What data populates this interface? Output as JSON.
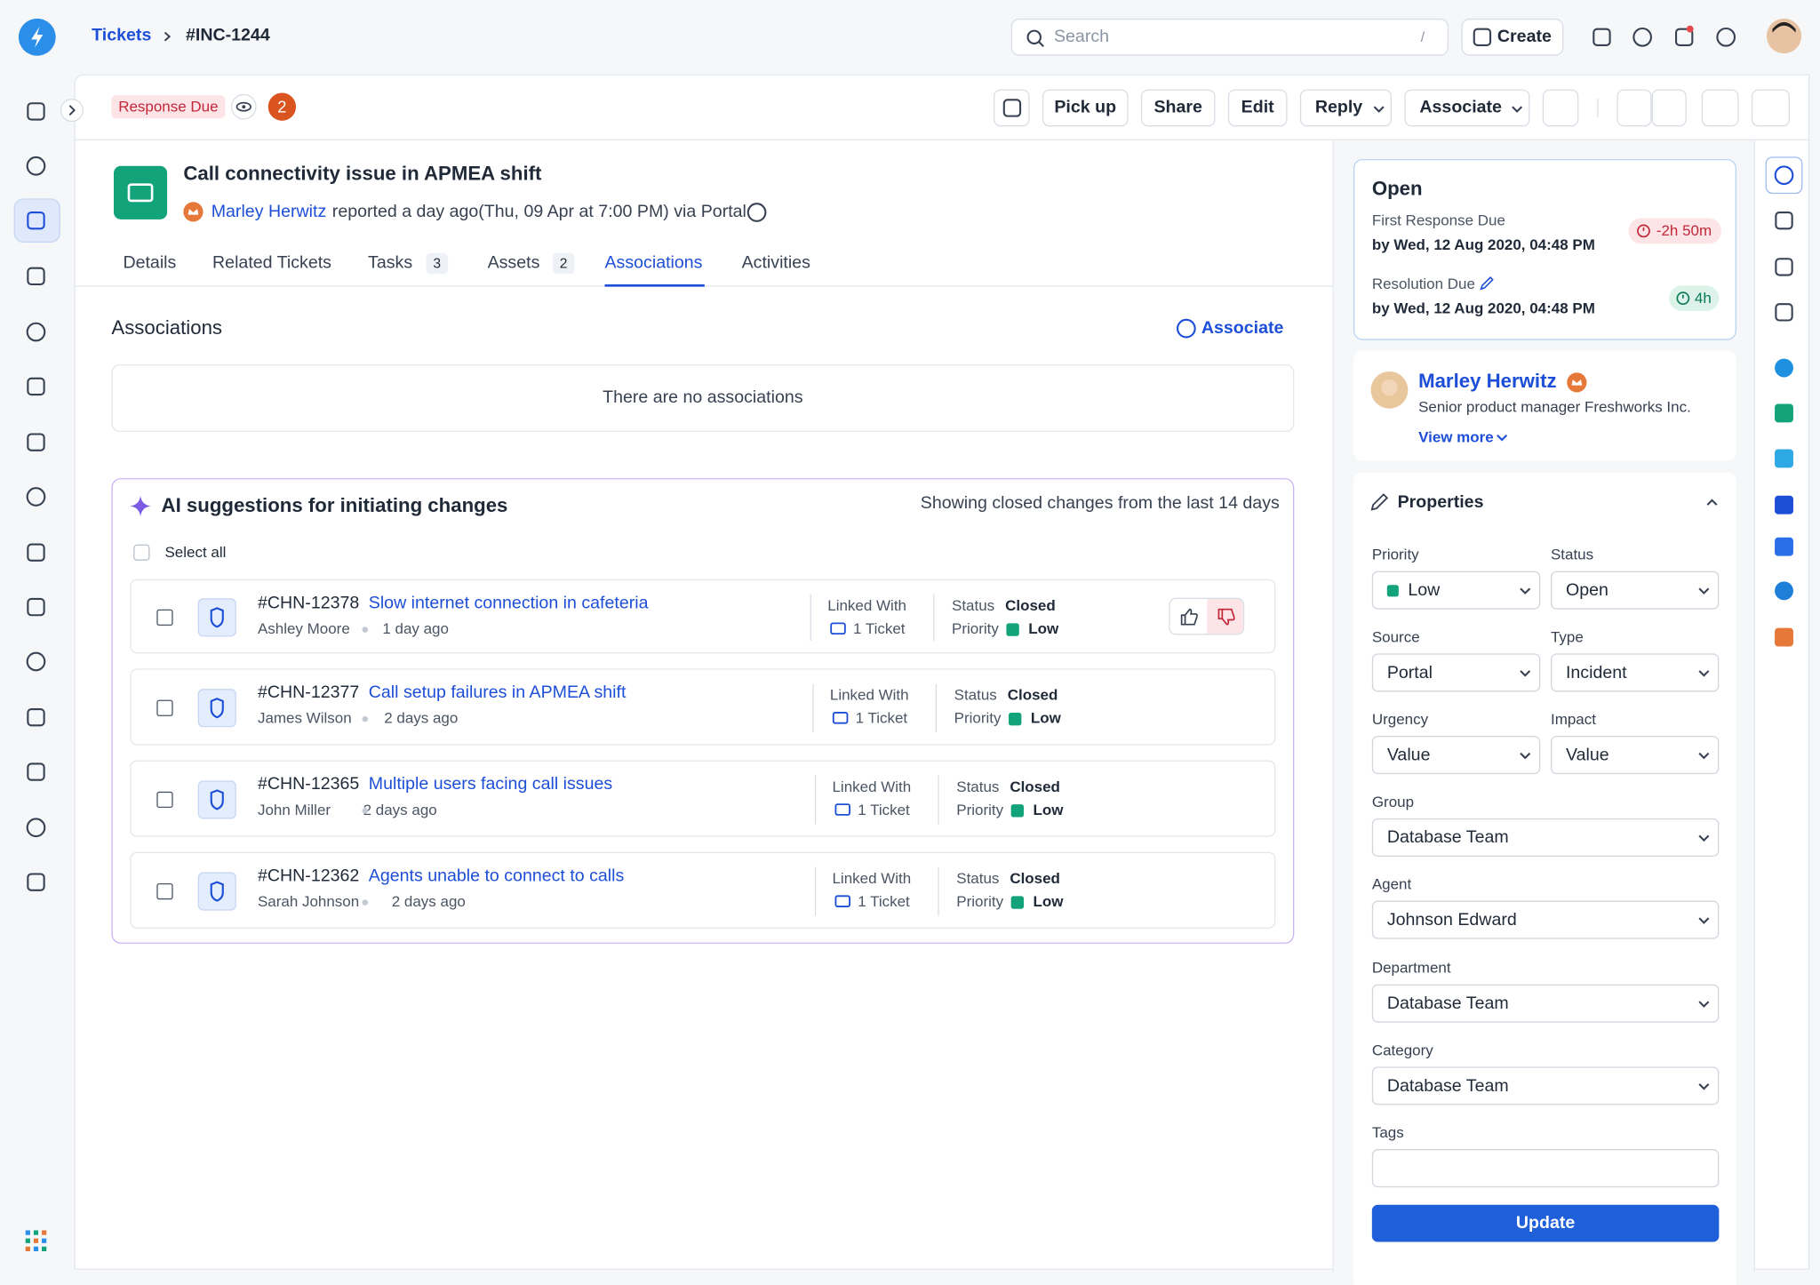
{
  "breadcrumb": {
    "root": "Tickets",
    "current": "#INC-1244"
  },
  "search": {
    "placeholder": "Search",
    "shortcut": "/"
  },
  "top_actions": {
    "create": "Create"
  },
  "ticket_header": {
    "badge": "Response Due",
    "count": 2,
    "actions": [
      "Pick up",
      "Share",
      "Edit",
      "Reply",
      "Associate"
    ]
  },
  "ticket": {
    "title": "Call connectivity issue in APMEA shift",
    "requester": "Marley Herwitz",
    "reported": "reported a day ago(Thu, 09 Apr at 7:00 PM) via Portal"
  },
  "tabs": [
    {
      "label": "Details"
    },
    {
      "label": "Related Tickets"
    },
    {
      "label": "Tasks",
      "count": 3
    },
    {
      "label": "Assets",
      "count": 2
    },
    {
      "label": "Associations",
      "active": true
    },
    {
      "label": "Activities"
    }
  ],
  "associations": {
    "title": "Associations",
    "action": "Associate",
    "empty": "There are no associations"
  },
  "ai_suggestions": {
    "title": "AI suggestions for initiating changes",
    "note": "Showing closed changes from the last 14 days",
    "select_all": "Select all",
    "linked_label": "Linked With",
    "status_label": "Status",
    "priority_label": "Priority",
    "items": [
      {
        "id": "#CHN-12378",
        "title": "Slow internet connection in cafeteria",
        "author": "Ashley Moore",
        "time": "1 day ago",
        "linked": "1 Ticket",
        "status": "Closed",
        "priority": "Low"
      },
      {
        "id": "#CHN-12377",
        "title": "Call setup failures in APMEA shift",
        "author": "James Wilson",
        "time": "2 days ago",
        "linked": "1 Ticket",
        "status": "Closed",
        "priority": "Low"
      },
      {
        "id": "#CHN-12365",
        "title": "Multiple users facing call issues",
        "author": "John Miller",
        "time": "2 days ago",
        "linked": "1 Ticket",
        "status": "Closed",
        "priority": "Low"
      },
      {
        "id": "#CHN-12362",
        "title": "Agents unable to connect to calls",
        "author": "Sarah Johnson",
        "time": "2 days ago",
        "linked": "1 Ticket",
        "status": "Closed",
        "priority": "Low"
      }
    ]
  },
  "status_card": {
    "status": "Open",
    "first_response_label": "First Response Due",
    "first_response_date": "by Wed, 12 Aug 2020, 04:48 PM",
    "first_response_timer": "-2h 50m",
    "resolution_label": "Resolution Due",
    "resolution_date": "by Wed, 12 Aug 2020, 04:48 PM",
    "resolution_timer": "4h"
  },
  "requester_card": {
    "name": "Marley Herwitz",
    "role": "Senior product manager Freshworks Inc.",
    "link": "View more"
  },
  "properties": {
    "title": "Properties",
    "fields": [
      {
        "label": "Priority",
        "value": "Low",
        "color": "#12a37a"
      },
      {
        "label": "Status",
        "value": "Open"
      },
      {
        "label": "Source",
        "value": "Portal"
      },
      {
        "label": "Type",
        "value": "Incident"
      },
      {
        "label": "Urgency",
        "value": "Value"
      },
      {
        "label": "Impact",
        "value": "Value"
      },
      {
        "label": "Group",
        "value": "Database Team"
      },
      {
        "label": "Agent",
        "value": "Johnson Edward"
      },
      {
        "label": "Department",
        "value": "Database Team"
      },
      {
        "label": "Category",
        "value": "Database Team"
      }
    ],
    "tags_label": "Tags",
    "button": "Update"
  }
}
